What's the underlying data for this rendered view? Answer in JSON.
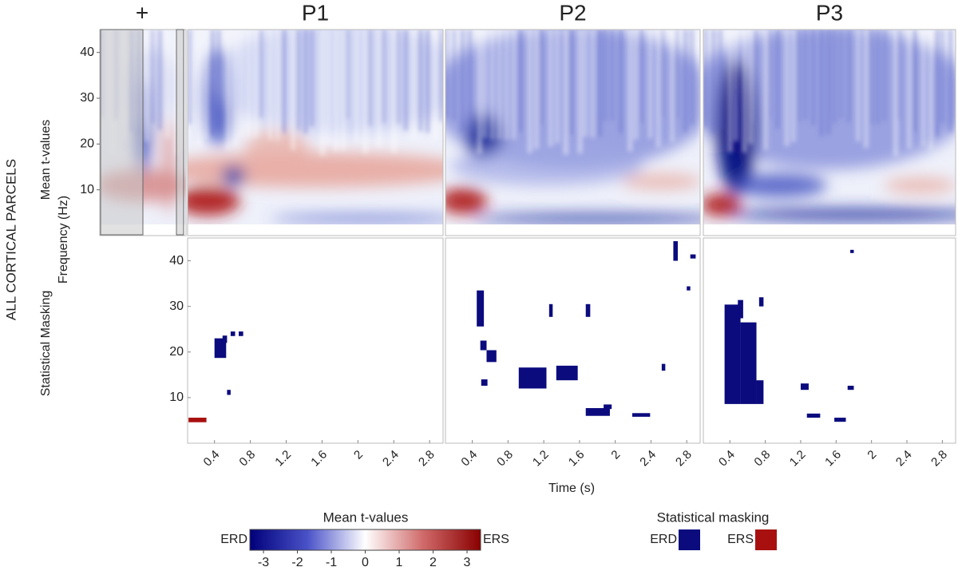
{
  "figure": {
    "row_label": "ALL CORTICAL PARCELS",
    "top_row_label": "Mean t-values",
    "bottom_row_label": "Statistical Masking",
    "ylabel": "Frequency (Hz)",
    "xlabel": "Time (s)"
  },
  "chart_data": [
    {
      "type": "heatmap",
      "title": "+",
      "ylim": [
        0,
        45
      ],
      "yticks": [
        10,
        20,
        30,
        40
      ]
    },
    {
      "type": "heatmap",
      "title": "P1"
    },
    {
      "type": "heatmap",
      "title": "P2"
    },
    {
      "type": "heatmap",
      "title": "P3"
    },
    {
      "type": "mask",
      "xlim": [
        0.1,
        2.95
      ],
      "ylim": [
        0,
        45
      ],
      "yticks": [
        10,
        20,
        30,
        40
      ],
      "xticks": [
        0.4,
        0.8,
        1.2,
        1.6,
        2,
        2.4,
        2.8
      ],
      "series": [
        {
          "name": "ERD",
          "color": "#0b0b7e",
          "regions": [
            {
              "x": [
                0.4,
                0.53
              ],
              "y": [
                18.7,
                23
              ]
            },
            {
              "x": [
                0.49,
                0.54
              ],
              "y": [
                22,
                23.6
              ]
            },
            {
              "x": [
                0.58,
                0.63
              ],
              "y": [
                23.5,
                24.5
              ]
            },
            {
              "x": [
                0.67,
                0.72
              ],
              "y": [
                23.5,
                24.5
              ]
            },
            {
              "x": [
                0.54,
                0.58
              ],
              "y": [
                10.6,
                11.7
              ]
            }
          ]
        },
        {
          "name": "ERS",
          "color": "#a81010",
          "regions": [
            {
              "x": [
                0.11,
                0.31
              ],
              "y": [
                4.6,
                5.6
              ]
            }
          ]
        }
      ]
    },
    {
      "type": "mask",
      "xlim": [
        0.1,
        2.95
      ],
      "ylim": [
        0,
        45
      ],
      "xticks": [
        0.4,
        0.8,
        1.2,
        1.6,
        2,
        2.4,
        2.8
      ],
      "series": [
        {
          "name": "ERD",
          "color": "#0b0b7e",
          "regions": [
            {
              "x": [
                0.45,
                0.53
              ],
              "y": [
                25.6,
                33.5
              ]
            },
            {
              "x": [
                0.49,
                0.56
              ],
              "y": [
                20.4,
                22.5
              ]
            },
            {
              "x": [
                0.56,
                0.67
              ],
              "y": [
                17.8,
                20.4
              ]
            },
            {
              "x": [
                0.5,
                0.57
              ],
              "y": [
                12.6,
                14
              ]
            },
            {
              "x": [
                0.92,
                1.23
              ],
              "y": [
                12,
                16.6
              ]
            },
            {
              "x": [
                1.26,
                1.3
              ],
              "y": [
                27.7,
                30.5
              ]
            },
            {
              "x": [
                1.34,
                1.58
              ],
              "y": [
                13.8,
                17
              ]
            },
            {
              "x": [
                1.67,
                1.72
              ],
              "y": [
                27.7,
                30.5
              ]
            },
            {
              "x": [
                1.67,
                1.94
              ],
              "y": [
                6,
                7.7
              ]
            },
            {
              "x": [
                1.87,
                1.96
              ],
              "y": [
                7.5,
                8.5
              ]
            },
            {
              "x": [
                2.19,
                2.39
              ],
              "y": [
                5.8,
                6.6
              ]
            },
            {
              "x": [
                2.52,
                2.56
              ],
              "y": [
                15.9,
                17.4
              ]
            },
            {
              "x": [
                2.65,
                2.7
              ],
              "y": [
                40,
                44.3
              ]
            },
            {
              "x": [
                2.84,
                2.9
              ],
              "y": [
                40.5,
                41.4
              ]
            },
            {
              "x": [
                2.8,
                2.84
              ],
              "y": [
                33.5,
                34.4
              ]
            }
          ]
        }
      ]
    },
    {
      "type": "mask",
      "xlim": [
        0.1,
        2.95
      ],
      "ylim": [
        0,
        45
      ],
      "xticks": [
        0.4,
        0.8,
        1.2,
        1.6,
        2,
        2.4,
        2.8
      ],
      "series": [
        {
          "name": "ERD",
          "color": "#0b0b7e",
          "regions": [
            {
              "x": [
                0.34,
                0.52
              ],
              "y": [
                8.6,
                30.4
              ]
            },
            {
              "x": [
                0.52,
                0.7
              ],
              "y": [
                8.6,
                26.5
              ]
            },
            {
              "x": [
                0.7,
                0.78
              ],
              "y": [
                8.6,
                13.8
              ]
            },
            {
              "x": [
                0.49,
                0.55
              ],
              "y": [
                27.4,
                31.4
              ]
            },
            {
              "x": [
                0.73,
                0.78
              ],
              "y": [
                30,
                32
              ]
            },
            {
              "x": [
                1.27,
                1.42
              ],
              "y": [
                5.6,
                6.5
              ]
            },
            {
              "x": [
                1.2,
                1.29
              ],
              "y": [
                11.7,
                13.1
              ]
            },
            {
              "x": [
                1.58,
                1.71
              ],
              "y": [
                4.7,
                5.6
              ]
            },
            {
              "x": [
                1.73,
                1.8
              ],
              "y": [
                11.7,
                12.6
              ]
            },
            {
              "x": [
                1.76,
                1.8
              ],
              "y": [
                41.7,
                42.4
              ]
            }
          ]
        }
      ]
    }
  ],
  "colorbar": {
    "title": "Mean t-values",
    "lim": [
      -3.4,
      3.4
    ],
    "ticks": [
      -3,
      -2,
      -1,
      0,
      1,
      2,
      3
    ],
    "left_label": "ERD",
    "right_label": "ERS"
  },
  "legend": {
    "title": "Statistical masking"
  }
}
